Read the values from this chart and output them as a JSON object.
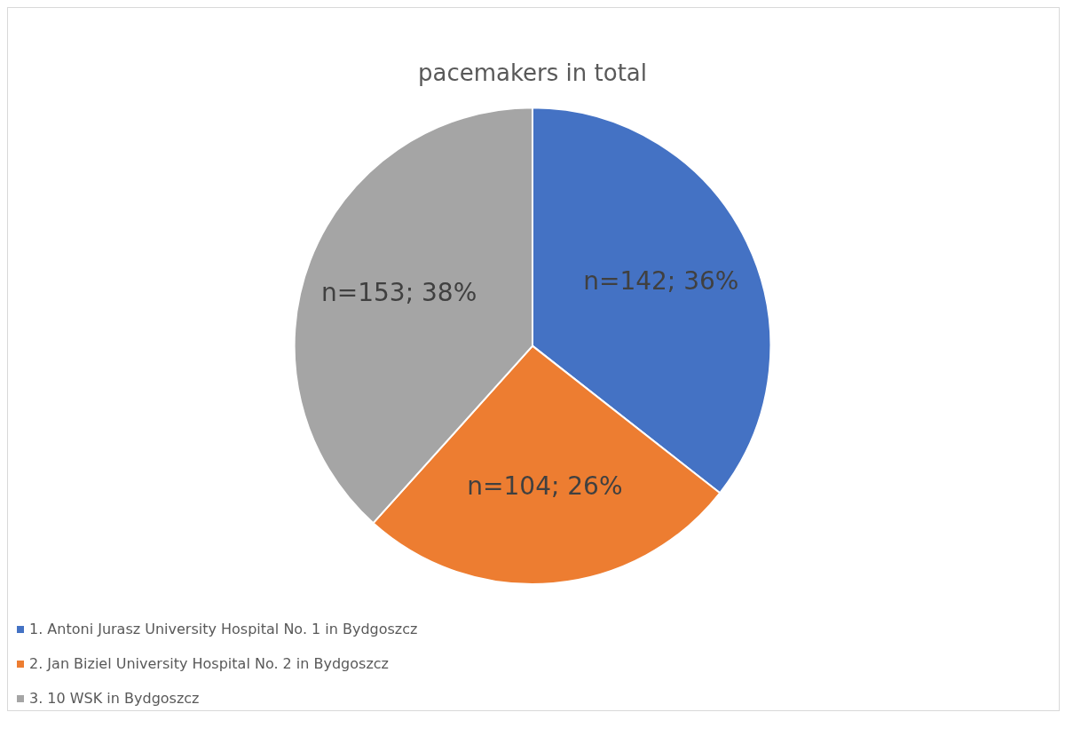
{
  "chart_data": {
    "type": "pie",
    "title": "pacemakers in total",
    "categories": [
      "1. Antoni Jurasz University Hospital No. 1 in Bydgoszcz",
      "2. Jan Biziel University Hospital No. 2 in Bydgoszcz",
      "3. 10 WSK in Bydgoszcz"
    ],
    "values": [
      142,
      104,
      153
    ],
    "colors": [
      "#4472c4",
      "#ed7d31",
      "#a5a5a5"
    ],
    "value_labels": [
      "n=142; 36%",
      "n=104; 26%",
      "n=153; 38%"
    ],
    "legend": "bottom left"
  }
}
